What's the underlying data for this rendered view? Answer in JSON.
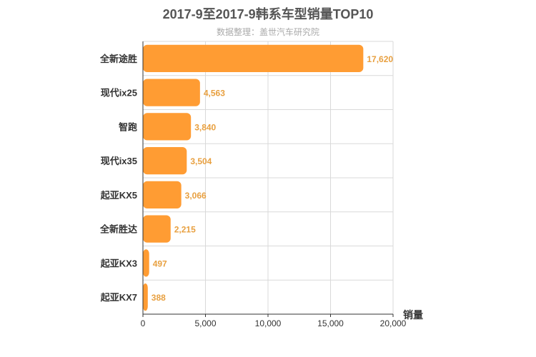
{
  "chart_data": {
    "type": "bar",
    "orientation": "horizontal",
    "title": "2017-9至2017-9韩系车型销量TOP10",
    "subtitle": "数据整理：盖世汽车研究院",
    "categories": [
      "全新途胜",
      "现代ix25",
      "智跑",
      "现代ix35",
      "起亚KX5",
      "全新胜达",
      "起亚KX3",
      "起亚KX7"
    ],
    "values": [
      17620,
      4563,
      3840,
      3504,
      3066,
      2215,
      497,
      388
    ],
    "value_labels": [
      "17,620",
      "4,563",
      "3,840",
      "3,504",
      "3,066",
      "2,215",
      "497",
      "388"
    ],
    "xlabel": "",
    "ylabel": "销量",
    "xlim": [
      0,
      20000
    ],
    "xticks": [
      0,
      5000,
      10000,
      15000,
      20000
    ],
    "xtick_labels": [
      "0",
      "5,000",
      "10,000",
      "15,000",
      "20,000"
    ],
    "grid": true,
    "bar_color": "#ff9c33"
  }
}
